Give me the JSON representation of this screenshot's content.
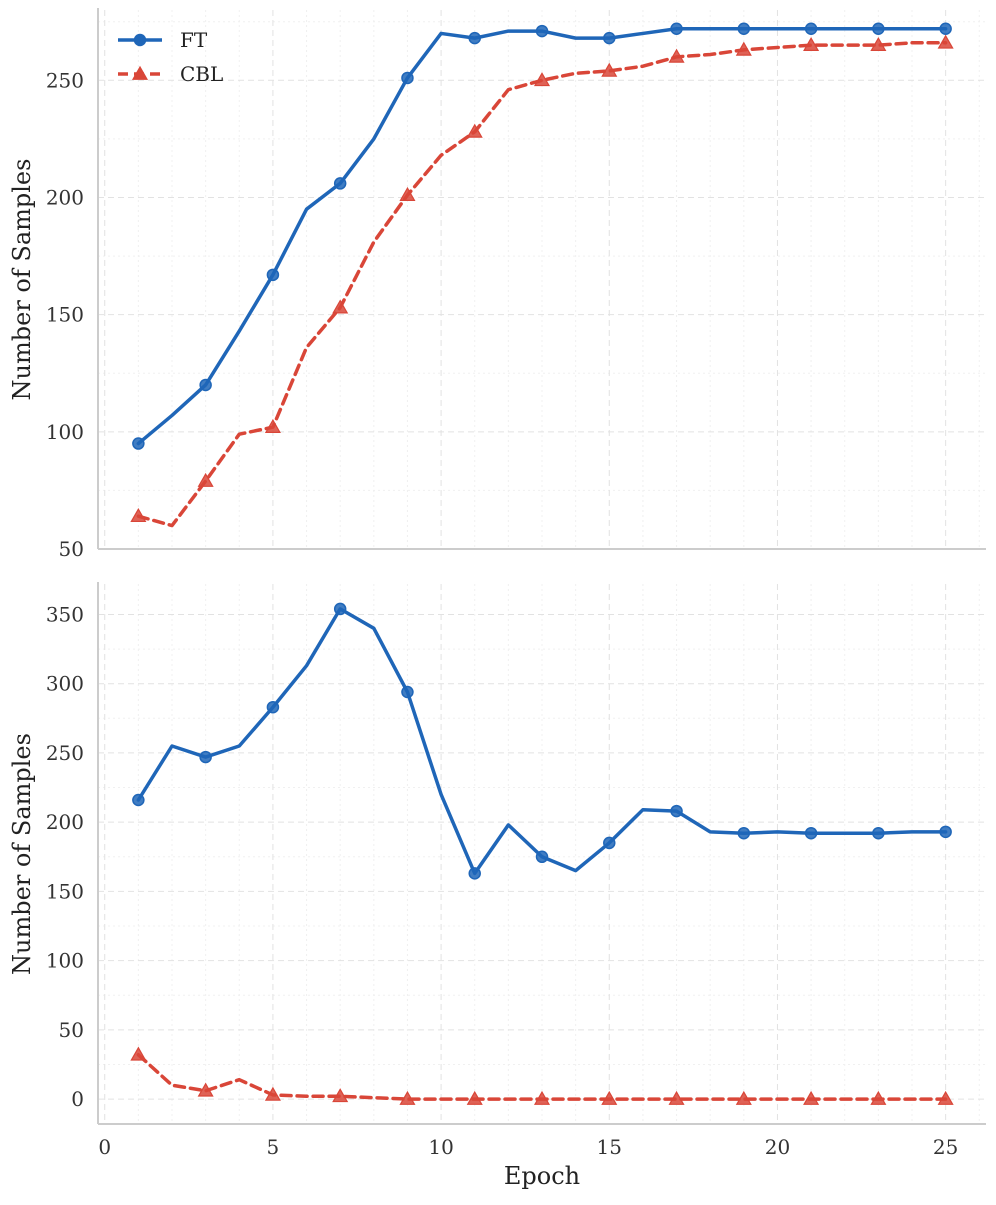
{
  "chart_data": [
    {
      "type": "line",
      "xlabel": "",
      "ylabel": "Number of Samples",
      "xlim": [
        -0.2,
        26.2
      ],
      "ylim": [
        50,
        280
      ],
      "xticks": [
        0,
        5,
        10,
        15,
        20,
        25
      ],
      "yticks": [
        50,
        100,
        150,
        200,
        250
      ],
      "show_x_tick_labels": false,
      "grid": true,
      "legend": "top-left",
      "x": [
        1,
        2,
        3,
        4,
        5,
        6,
        7,
        8,
        9,
        10,
        11,
        12,
        13,
        14,
        15,
        16,
        17,
        18,
        19,
        20,
        21,
        22,
        23,
        24,
        25
      ],
      "series": [
        {
          "name": "FT",
          "color": "#1f66b8",
          "style": "solid",
          "marker": "circle",
          "values": [
            95,
            107,
            120,
            143,
            167,
            195,
            206,
            225,
            251,
            270,
            268,
            271,
            271,
            268,
            268,
            270,
            272,
            272,
            272,
            272,
            272,
            272,
            272,
            272,
            272
          ]
        },
        {
          "name": "CBL",
          "color": "#d94638",
          "style": "dashed",
          "marker": "triangle",
          "values": [
            64,
            60,
            79,
            99,
            102,
            136,
            153,
            181,
            201,
            218,
            228,
            246,
            250,
            253,
            254,
            256,
            260,
            261,
            263,
            264,
            265,
            265,
            265,
            266,
            266
          ]
        }
      ]
    },
    {
      "type": "line",
      "xlabel": "Epoch",
      "ylabel": "Number of Samples",
      "xlim": [
        -0.2,
        26.2
      ],
      "ylim": [
        -18,
        372
      ],
      "xticks": [
        0,
        5,
        10,
        15,
        20,
        25
      ],
      "yticks": [
        0,
        50,
        100,
        150,
        200,
        250,
        300,
        350
      ],
      "show_x_tick_labels": true,
      "grid": true,
      "legend": "none",
      "x": [
        1,
        2,
        3,
        4,
        5,
        6,
        7,
        8,
        9,
        10,
        11,
        12,
        13,
        14,
        15,
        16,
        17,
        18,
        19,
        20,
        21,
        22,
        23,
        24,
        25
      ],
      "series": [
        {
          "name": "FT",
          "color": "#1f66b8",
          "style": "solid",
          "marker": "circle",
          "values": [
            216,
            255,
            247,
            255,
            283,
            313,
            354,
            340,
            294,
            220,
            163,
            198,
            175,
            165,
            185,
            209,
            208,
            193,
            192,
            193,
            192,
            192,
            192,
            193,
            193
          ]
        },
        {
          "name": "CBL",
          "color": "#d94638",
          "style": "dashed",
          "marker": "triangle",
          "values": [
            32,
            10,
            6,
            14,
            3,
            2,
            2,
            1,
            0,
            0,
            0,
            0,
            0,
            0,
            0,
            0,
            0,
            0,
            0,
            0,
            0,
            0,
            0,
            0,
            0
          ]
        }
      ]
    }
  ]
}
